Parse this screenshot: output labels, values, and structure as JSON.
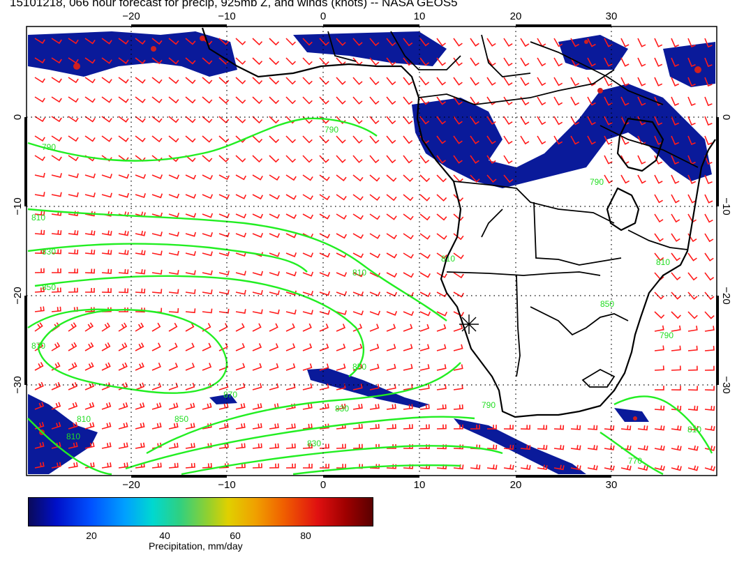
{
  "title": "15101218, 066 hour forecast for precip, 925mb Z, and winds (knots) -- NASA GEOS5",
  "map": {
    "lon_range": [
      -30,
      40
    ],
    "lat_range": [
      -40,
      10
    ],
    "lon_ticks": [
      "−20",
      "−10",
      "0",
      "10",
      "20",
      "30"
    ],
    "lat_ticks": [
      "0",
      "−10",
      "−20",
      "−30"
    ],
    "contour_labels": [
      "790",
      "790",
      "810",
      "830",
      "850",
      "810",
      "810",
      "870",
      "850",
      "830",
      "870",
      "830",
      "850",
      "810",
      "790",
      "790",
      "810",
      "810",
      "770",
      "790",
      "850",
      "810"
    ],
    "colors": {
      "contours": "#22ee22",
      "wind_barbs": "#ff1a1a",
      "coastlines": "#000000"
    }
  },
  "colorbar": {
    "ticks": [
      "20",
      "40",
      "60",
      "80"
    ],
    "label": "Precipitation, mm/day"
  }
}
